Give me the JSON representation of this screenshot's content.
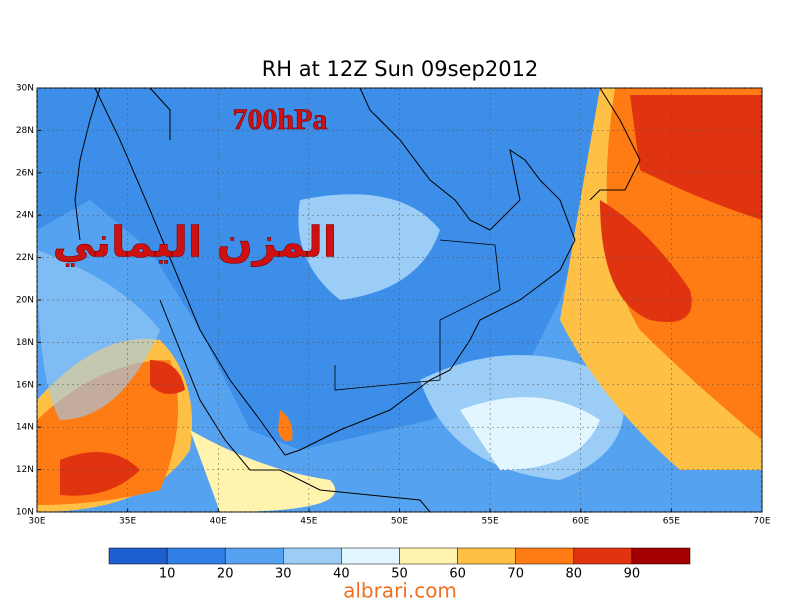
{
  "title": "RH at 12Z Sun 09sep2012",
  "level_label": "700hPa",
  "arabic_label": "المزن اليماني",
  "map": {
    "lat_labels": [
      "30N",
      "28N",
      "26N",
      "24N",
      "22N",
      "20N",
      "18N",
      "16N",
      "14N",
      "12N",
      "10N"
    ],
    "lon_labels": [
      "30E",
      "35E",
      "40E",
      "45E",
      "50E",
      "55E",
      "60E",
      "65E",
      "70E"
    ]
  },
  "colorbar": {
    "colors": [
      "#1e5fcf",
      "#2f7fe6",
      "#55a3f0",
      "#9ccdf7",
      "#e2f6ff",
      "#fff3ad",
      "#ffc046",
      "#ff7b14",
      "#e0330f",
      "#a40000"
    ],
    "ticks": [
      10,
      20,
      30,
      40,
      50,
      60,
      70,
      80,
      90
    ]
  },
  "footer": "albrari.com"
}
